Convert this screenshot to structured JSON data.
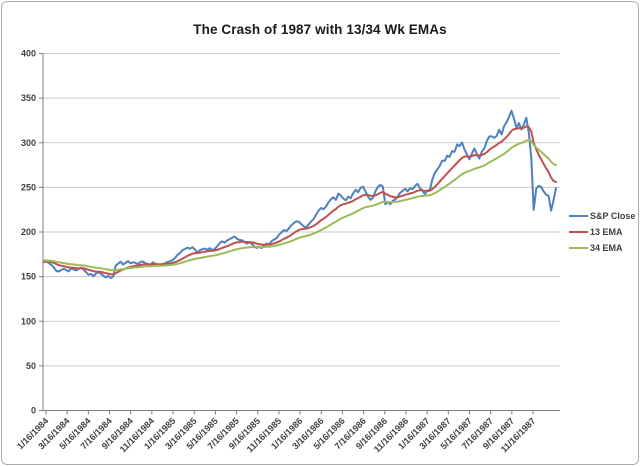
{
  "chart_data": {
    "type": "line",
    "title": "The Crash of 1987 with 13/34 Wk EMAs",
    "xlabel": "",
    "ylabel": "",
    "ylim": [
      0,
      400
    ],
    "y_ticks": [
      0,
      50,
      100,
      150,
      200,
      250,
      300,
      350,
      400
    ],
    "grid": "horizontal",
    "legend_position": "right",
    "x_tick_labels": [
      "1/16/1984",
      "3/16/1984",
      "5/16/1984",
      "7/16/1984",
      "9/16/1984",
      "11/16/1984",
      "1/16/1985",
      "3/16/1985",
      "5/16/1985",
      "7/16/1985",
      "9/16/1985",
      "11/16/1985",
      "1/16/1986",
      "3/16/1986",
      "5/16/1986",
      "7/16/1986",
      "9/16/1986",
      "11/16/1986",
      "1/16/1987",
      "3/16/1987",
      "5/16/1987",
      "7/16/1987",
      "9/16/1987",
      "11/16/1987"
    ],
    "x_unit": "weekly",
    "colors": {
      "gridline": "#c9c9c9",
      "axis": "#808080",
      "text": "#3f3f3f"
    },
    "series": [
      {
        "name": "S&P Close",
        "color": "#4F81BD",
        "kind": "raw",
        "values": [
          166.4,
          167.0,
          165.2,
          163.0,
          160.1,
          156.3,
          155.7,
          157.5,
          159.0,
          157.3,
          156.0,
          159.3,
          158.0,
          157.0,
          158.5,
          160.0,
          157.8,
          155.2,
          152.0,
          153.0,
          150.4,
          153.5,
          155.1,
          153.2,
          151.0,
          149.0,
          150.9,
          148.4,
          150.2,
          162.4,
          164.5,
          166.7,
          163.5,
          165.5,
          167.4,
          164.8,
          166.1,
          165.4,
          164.0,
          166.5,
          167.0,
          165.0,
          164.2,
          163.0,
          166.0,
          164.5,
          163.2,
          162.5,
          164.0,
          165.2,
          166.5,
          167.2,
          168.5,
          171.0,
          174.5,
          176.5,
          179.6,
          181.0,
          182.5,
          181.2,
          183.0,
          180.5,
          177.0,
          179.5,
          180.7,
          181.5,
          180.0,
          182.0,
          179.8,
          181.0,
          184.0,
          187.5,
          189.6,
          188.0,
          190.5,
          191.9,
          193.5,
          195.0,
          192.5,
          191.0,
          190.9,
          189.0,
          187.0,
          188.6,
          186.5,
          184.0,
          182.1,
          183.5,
          182.0,
          185.0,
          187.0,
          186.0,
          189.8,
          191.5,
          193.0,
          197.0,
          199.5,
          202.2,
          201.0,
          204.0,
          207.5,
          210.0,
          212.0,
          211.3,
          209.0,
          206.5,
          205.0,
          208.5,
          211.8,
          214.5,
          219.5,
          224.0,
          226.9,
          225.5,
          228.5,
          233.0,
          236.5,
          238.9,
          236.0,
          243.0,
          241.0,
          237.5,
          235.5,
          239.5,
          238.0,
          243.5,
          247.3,
          244.5,
          249.5,
          250.8,
          245.5,
          239.5,
          236.1,
          238.5,
          245.5,
          250.5,
          252.9,
          250.5,
          231.0,
          233.5,
          231.3,
          235.0,
          236.5,
          239.5,
          244.0,
          246.0,
          248.5,
          245.5,
          249.2,
          248.0,
          251.5,
          254.0,
          249.0,
          246.5,
          242.2,
          246.5,
          247.1,
          258.7,
          266.3,
          270.1,
          274.1,
          280.0,
          279.7,
          285.5,
          284.2,
          290.7,
          289.9,
          298.2,
          296.1,
          300.4,
          292.5,
          286.9,
          281.5,
          288.0,
          293.4,
          287.4,
          282.2,
          290.1,
          293.5,
          301.6,
          307.0,
          307.2,
          305.6,
          307.6,
          314.6,
          309.3,
          318.7,
          323.0,
          328.7,
          335.9,
          327.0,
          316.7,
          322.0,
          314.9,
          320.2,
          328.1,
          311.1,
          282.7,
          224.8,
          248.2,
          251.8,
          250.4,
          245.6,
          242.0,
          240.3,
          223.9,
          235.3,
          249.2
        ]
      },
      {
        "name": "13 EMA",
        "color": "#C0504D",
        "kind": "ema",
        "period": 13,
        "seed": 167.0
      },
      {
        "name": "34 EMA",
        "color": "#9BBB59",
        "kind": "ema",
        "period": 34,
        "seed": 168.2
      }
    ]
  }
}
